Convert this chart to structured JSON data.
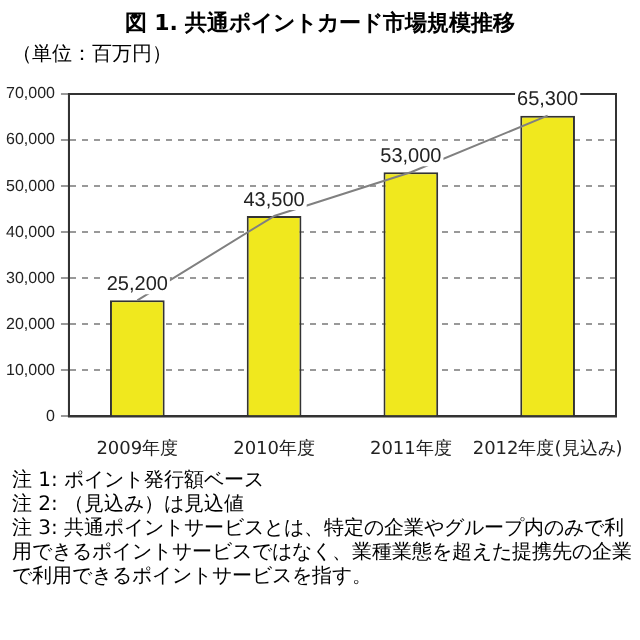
{
  "chart_data": {
    "type": "bar",
    "title": "図 1. 共通ポイントカード市場規模推移",
    "ylabel": "（単位：百万円）",
    "categories": [
      "2009年度",
      "2010年度",
      "2011年度",
      "2012年度(見込み)"
    ],
    "series": [
      {
        "color": "#f0e81e",
        "values": [
          25200,
          43500,
          53000,
          65300
        ],
        "value_labels": [
          "25,200",
          "43,500",
          "53,000",
          "65,300"
        ]
      },
      {
        "type": "line",
        "color": "#808080",
        "values": [
          25200,
          43500,
          53000,
          65300
        ]
      }
    ],
    "ylim": [
      0,
      70000
    ],
    "yticks": [
      {
        "value": 0,
        "label": "0"
      },
      {
        "value": 10000,
        "label": "10,000"
      },
      {
        "value": 20000,
        "label": "20,000"
      },
      {
        "value": 30000,
        "label": "30,000"
      },
      {
        "value": 40000,
        "label": "40,000"
      },
      {
        "value": 50000,
        "label": "50,000"
      },
      {
        "value": 60000,
        "label": "60,000"
      },
      {
        "value": 70000,
        "label": "70,000"
      }
    ],
    "grid": "y",
    "marker": "none",
    "annotations": [
      "注 1: ポイント発行額ベース",
      "注 2: （見込み）は見込値",
      "注 3: 共通ポイントサービスとは、特定の企業やグループ内のみで利用できるポイントサービスではなく、業種業態を超えた提携先の企業で利用できるポイントサービスを指す。"
    ]
  }
}
